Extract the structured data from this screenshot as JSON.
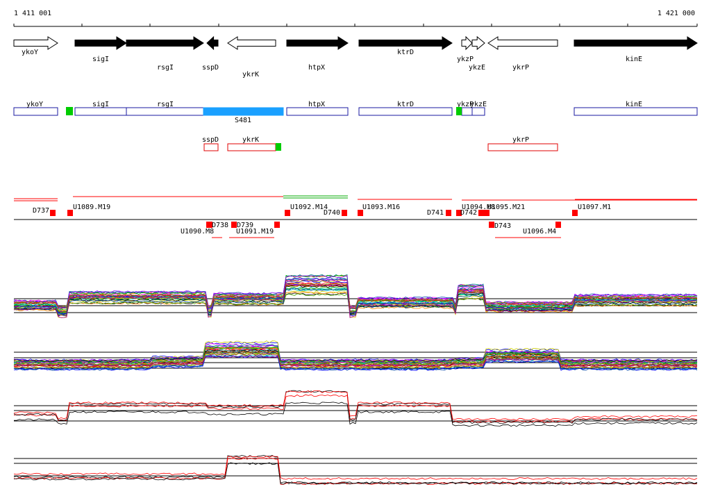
{
  "coords": {
    "start": "1 411 001",
    "end": "1 421 000"
  },
  "genes": [
    {
      "name": "ykoY",
      "strand": "+",
      "filled": false
    },
    {
      "name": "sigI",
      "strand": "+",
      "filled": true
    },
    {
      "name": "rsgI",
      "strand": "+",
      "filled": true
    },
    {
      "name": "sspD",
      "strand": "-",
      "filled": true
    },
    {
      "name": "ykrK",
      "strand": "-",
      "filled": false
    },
    {
      "name": "htpX",
      "strand": "+",
      "filled": true
    },
    {
      "name": "ktrD",
      "strand": "+",
      "filled": true
    },
    {
      "name": "ykzP",
      "strand": "+",
      "filled": false
    },
    {
      "name": "ykzE",
      "strand": "+",
      "filled": false
    },
    {
      "name": "ykrP",
      "strand": "-",
      "filled": false
    },
    {
      "name": "kinE",
      "strand": "+",
      "filled": true
    }
  ],
  "plus_annotations": [
    "ykoY",
    "sigI",
    "rsgI",
    "S481",
    "htpX",
    "ktrD",
    "ykzP",
    "ykzE",
    "kinE"
  ],
  "minus_annotations": [
    "sspD",
    "ykrK",
    "ykrP"
  ],
  "segments_plus": [
    "D737",
    "U1089.M19",
    "U1092.M14",
    "D740",
    "U1093.M16",
    "D741",
    "U1094.M8",
    "D742",
    "U1095.M21",
    "U1097.M1"
  ],
  "segments_minus": [
    "U1090.M8",
    "D738",
    "D739",
    "U1091.M19",
    "D743",
    "U1096.M4"
  ],
  "colors": {
    "strand_plus_box": "#1a1aa0",
    "strand_minus_box": "#e00000",
    "srna": "#1aa0ff",
    "marker": "#00cc00",
    "segment": "#ff0000"
  }
}
